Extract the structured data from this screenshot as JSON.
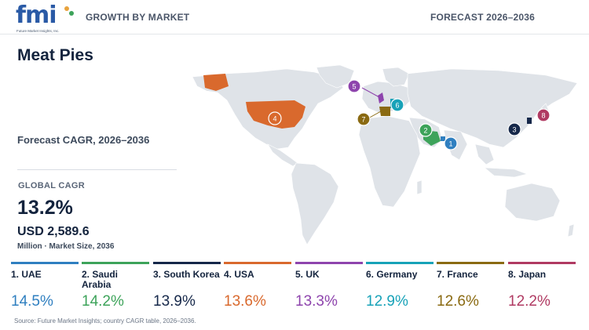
{
  "header": {
    "logo_text": "fmi",
    "logo_tagline": "Future Market Insights, Inc.",
    "left_label": "GROWTH BY MARKET",
    "right_label": "FORECAST 2026–2036"
  },
  "report": {
    "title": "Meat Pies",
    "cagr_label": "Forecast CAGR, 2026–2036",
    "global_cagr_label": "GLOBAL CAGR",
    "global_cagr_value": "13.2%",
    "market_size_value": "USD 2,589.6",
    "market_size_note": "Million · Market Size, 2036"
  },
  "map": {
    "land_color": "#dfe3e8",
    "markers": [
      {
        "rank": "1",
        "country": "UAE",
        "color": "#2f7fc0"
      },
      {
        "rank": "2",
        "country": "Saudi Arabia",
        "color": "#3da35a"
      },
      {
        "rank": "3",
        "country": "South Korea",
        "color": "#16284a"
      },
      {
        "rank": "4",
        "country": "USA",
        "color": "#d9692d"
      },
      {
        "rank": "5",
        "country": "UK",
        "color": "#8e44ad"
      },
      {
        "rank": "6",
        "country": "Germany",
        "color": "#17a2b8"
      },
      {
        "rank": "7",
        "country": "France",
        "color": "#8a6a12"
      },
      {
        "rank": "8",
        "country": "Japan",
        "color": "#b03a62"
      }
    ]
  },
  "countries": [
    {
      "label": "1. UAE",
      "cagr": "14.5%",
      "color": "#2f7fc0"
    },
    {
      "label": "2. Saudi Arabia",
      "cagr": "14.2%",
      "color": "#3da35a"
    },
    {
      "label": "3. South Korea",
      "cagr": "13.9%",
      "color": "#16284a"
    },
    {
      "label": "4. USA",
      "cagr": "13.6%",
      "color": "#d9692d"
    },
    {
      "label": "5. UK",
      "cagr": "13.3%",
      "color": "#8e44ad"
    },
    {
      "label": "6. Germany",
      "cagr": "12.9%",
      "color": "#17a2b8"
    },
    {
      "label": "7. France",
      "cagr": "12.6%",
      "color": "#8a6a12"
    },
    {
      "label": "8. Japan",
      "cagr": "12.2%",
      "color": "#b03a62"
    }
  ],
  "source": "Source: Future Market Insights; country CAGR table, 2026–2036."
}
